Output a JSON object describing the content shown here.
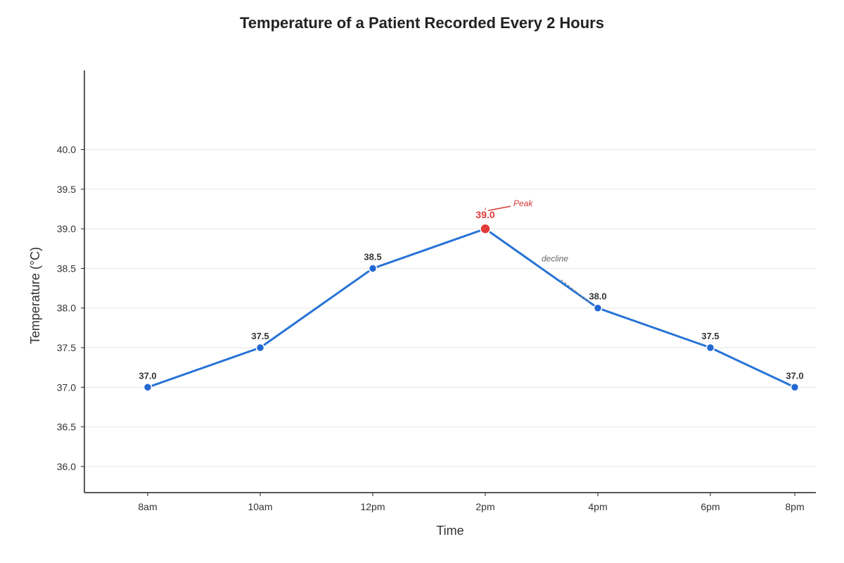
{
  "chart_data": {
    "type": "line",
    "title": "Temperature of a Patient Recorded Every 2 Hours",
    "xlabel": "Time",
    "ylabel": "Temperature (°C)",
    "categories": [
      "8am",
      "10am",
      "12pm",
      "2pm",
      "4pm",
      "6pm",
      "8pm"
    ],
    "values": [
      37.0,
      37.5,
      38.5,
      39.0,
      38.0,
      37.5,
      37.0
    ],
    "data_labels": [
      "37.0",
      "37.5",
      "38.5",
      "39.0",
      "38.0",
      "37.5",
      "37.0"
    ],
    "ylim": [
      35.67,
      41.0
    ],
    "yticks": [
      36.0,
      36.5,
      37.0,
      37.5,
      38.0,
      38.5,
      39.0,
      39.5,
      40.0
    ],
    "ytick_labels": [
      "36.0",
      "36.5",
      "37.0",
      "37.5",
      "38.0",
      "38.5",
      "39.0",
      "39.5",
      "40.0"
    ],
    "grid": "horizontal",
    "legend": "none",
    "highlight_index": 3,
    "annotations": [
      {
        "text": "Peak",
        "target": "2pm"
      },
      {
        "text": "decline",
        "target": "4pm"
      }
    ],
    "colors": {
      "line": "#2874d6",
      "point": "#2368d2",
      "highlight": "#e03a3a",
      "grid": "#e6e6e6",
      "axis": "#222222"
    }
  }
}
